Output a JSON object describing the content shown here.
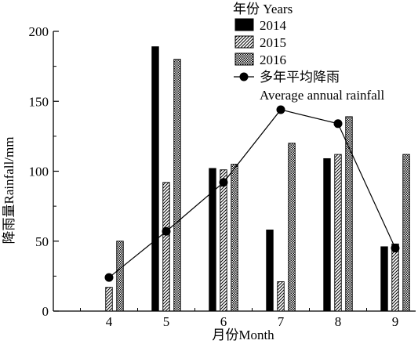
{
  "chart_data": {
    "type": "bar",
    "title": "",
    "xlabel": "月份Month",
    "ylabel": "降雨量Rainfall/mm",
    "categories": [
      "4",
      "5",
      "6",
      "7",
      "8",
      "9"
    ],
    "ylim": [
      0,
      200
    ],
    "yticks": [
      "0",
      "50",
      "100",
      "150",
      "200"
    ],
    "grid": false,
    "legend_title": "年份 Years",
    "legend_position": "top-right",
    "series": [
      {
        "name": "2014",
        "values": [
          0,
          189,
          102,
          58,
          109,
          46
        ],
        "pattern": "solid"
      },
      {
        "name": "2015",
        "values": [
          17,
          92,
          101,
          21,
          112,
          48
        ],
        "pattern": "hatch"
      },
      {
        "name": "2016",
        "values": [
          50,
          180,
          105,
          120,
          139,
          112
        ],
        "pattern": "checker"
      }
    ],
    "line_series": {
      "name": "多年平均降雨",
      "name_line2": "Average annual rainfall",
      "values": [
        24,
        57,
        92,
        144,
        134,
        45
      ]
    }
  }
}
